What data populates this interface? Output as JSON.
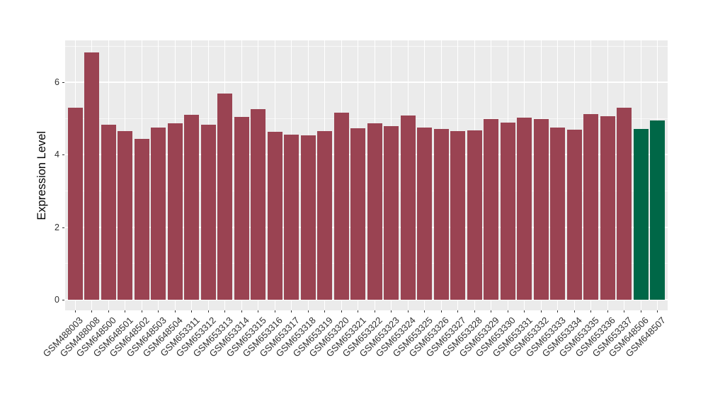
{
  "chart_data": {
    "type": "bar",
    "title": "",
    "xlabel": "",
    "ylabel": "Expression Level",
    "categories": [
      "GSM488003",
      "GSM488008",
      "GSM648500",
      "GSM648501",
      "GSM648502",
      "GSM648503",
      "GSM648504",
      "GSM653311",
      "GSM653312",
      "GSM653313",
      "GSM653314",
      "GSM653315",
      "GSM653316",
      "GSM653317",
      "GSM653318",
      "GSM653319",
      "GSM653320",
      "GSM653321",
      "GSM653322",
      "GSM653323",
      "GSM653324",
      "GSM653325",
      "GSM653326",
      "GSM653327",
      "GSM653328",
      "GSM653329",
      "GSM653330",
      "GSM653331",
      "GSM653332",
      "GSM653333",
      "GSM653334",
      "GSM653335",
      "GSM653336",
      "GSM653337",
      "GSM648506",
      "GSM648507"
    ],
    "values": [
      5.3,
      6.82,
      4.83,
      4.65,
      4.44,
      4.75,
      4.87,
      5.1,
      4.83,
      5.69,
      5.04,
      5.25,
      4.63,
      4.55,
      4.53,
      4.65,
      5.17,
      4.73,
      4.86,
      4.78,
      5.09,
      4.75,
      4.72,
      4.65,
      4.67,
      4.98,
      4.88,
      5.02,
      4.98,
      4.75,
      4.7,
      5.12,
      5.06,
      5.29,
      4.72,
      4.95
    ],
    "highlight_categories": [
      "GSM648506",
      "GSM648507"
    ],
    "colors": {
      "bar_default": "#9a4352",
      "bar_highlight": "#006747",
      "panel_background": "#ebebeb",
      "gridline": "#ffffff",
      "tick_text": "#303030",
      "axis_title_text": "#000000"
    },
    "y_ticks": [
      0,
      2,
      4,
      6
    ],
    "y_minor_ticks": [
      1,
      3,
      5,
      7
    ],
    "ylim": [
      -0.3,
      7.16
    ],
    "grid": "on",
    "legend": "none"
  }
}
